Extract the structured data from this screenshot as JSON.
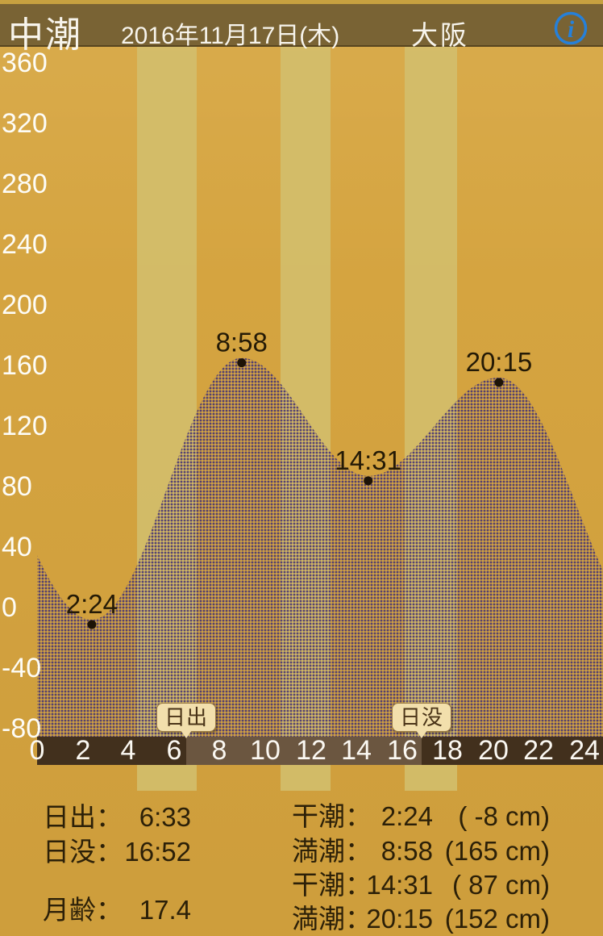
{
  "header": {
    "tide_type": "中潮",
    "date": "2016年11月17日(木)",
    "location": "大阪",
    "info_icon": "i"
  },
  "chart_data": {
    "type": "area",
    "title": "tide level curve",
    "y_unit": "cm",
    "x_unit": "hour",
    "y_ticks": [
      360,
      320,
      280,
      240,
      200,
      160,
      120,
      80,
      40,
      0,
      -40,
      -80
    ],
    "x_ticks": [
      0,
      2,
      4,
      6,
      8,
      10,
      12,
      14,
      16,
      18,
      20,
      22,
      24
    ],
    "ylim": [
      -88,
      370
    ],
    "xlim": [
      0,
      24.8
    ],
    "grid": false,
    "curve_knots_hour_cm": [
      [
        -4.5,
        150
      ],
      [
        2.4,
        -8
      ],
      [
        8.967,
        165
      ],
      [
        14.517,
        87
      ],
      [
        20.25,
        152
      ],
      [
        27.0,
        -15
      ]
    ],
    "events": [
      {
        "label": "2:24",
        "hour": 2.4,
        "cm": -8,
        "kind": "low"
      },
      {
        "label": "8:58",
        "hour": 8.967,
        "cm": 165,
        "kind": "high"
      },
      {
        "label": "14:31",
        "hour": 14.517,
        "cm": 87,
        "kind": "low"
      },
      {
        "label": "20:15",
        "hour": 20.25,
        "cm": 152,
        "kind": "high"
      }
    ],
    "sunrise": {
      "label": "日出",
      "hour": 6.55
    },
    "sunset": {
      "label": "日没",
      "hour": 16.867
    }
  },
  "info": {
    "sunrise_label": "日出：",
    "sunrise_time": "6:33",
    "sunset_label": "日没：",
    "sunset_time": "16:52",
    "moon_age_label": "月齢：",
    "moon_age": "17.4",
    "tide_rows": [
      {
        "label": "干潮：",
        "time": "2:24",
        "height": "( -8 cm)"
      },
      {
        "label": "満潮：",
        "time": "8:58",
        "height": "(165 cm)"
      },
      {
        "label": "干潮：",
        "time": "14:31",
        "height": "( 87 cm)"
      },
      {
        "label": "満潮：",
        "time": "20:15",
        "height": "(152 cm)"
      }
    ]
  },
  "colors": {
    "background_gold": "#d5a440",
    "stripe_light": "#d2bf6e",
    "header_bar": "#796334",
    "header_text": "#f7f4ec",
    "info_blue": "#2680d9",
    "fill_purple": "#46367c",
    "bar_night": "#42301d",
    "bar_day": "#6b5640",
    "callout_bg": "#f2dfac",
    "dark_text": "#2c2008"
  }
}
